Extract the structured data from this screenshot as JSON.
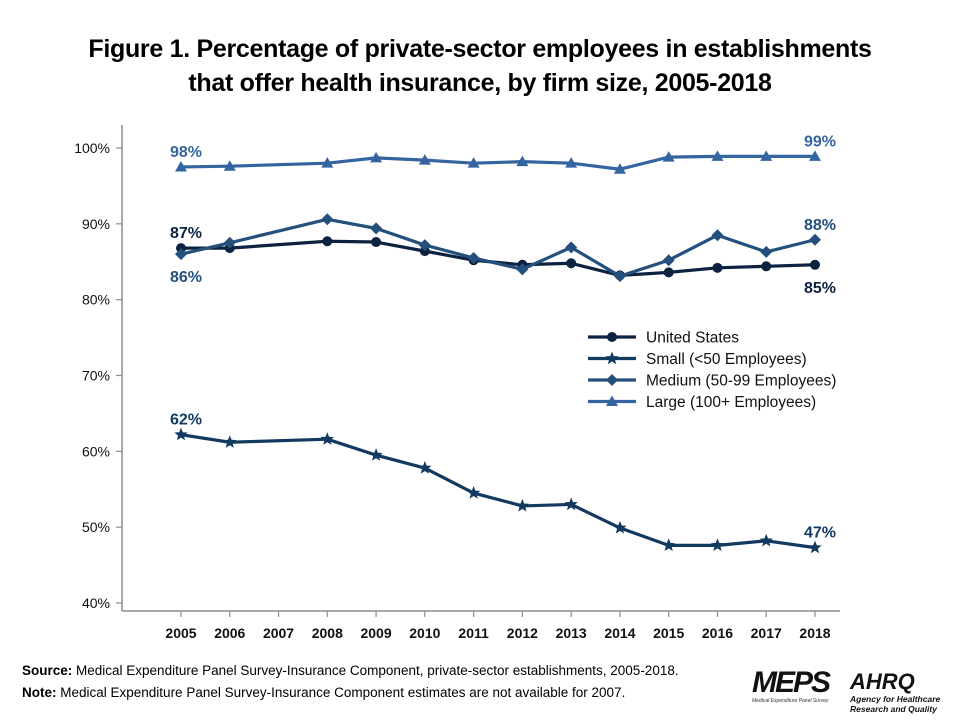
{
  "title_line1": "Figure 1. Percentage of private-sector employees in establishments",
  "title_line2": "that offer health insurance, by firm size, 2005-2018",
  "footer": {
    "source_label": "Source:",
    "source_text": " Medical Expenditure Panel Survey-Insurance Component,  private-sector establishments, 2005-2018.",
    "note_label": "Note:",
    "note_text": " Medical Expenditure Panel Survey-Insurance Component  estimates are not available for 2007."
  },
  "logos": {
    "meps": "MEPS",
    "meps_sub": "Medical Expenditure Panel Survey",
    "ahrq": "AHRQ",
    "ahrq_sub1": "Agency for Healthcare",
    "ahrq_sub2": "Research and Quality"
  },
  "chart_data": {
    "type": "line",
    "title": "Figure 1. Percentage of private-sector employees in establishments that offer health insurance, by firm size, 2005-2018",
    "xlabel": "",
    "ylabel": "",
    "x": [
      2005,
      2006,
      2008,
      2009,
      2010,
      2011,
      2012,
      2013,
      2014,
      2015,
      2016,
      2017,
      2018
    ],
    "x_ticks": [
      "2005",
      "2006",
      "2007",
      "2008",
      "2009",
      "2010",
      "2011",
      "2012",
      "2013",
      "2014",
      "2015",
      "2016",
      "2017",
      "2018"
    ],
    "xlim": [
      2004,
      2019
    ],
    "ylim": [
      40,
      100
    ],
    "y_ticks": [
      "40%",
      "50%",
      "60%",
      "70%",
      "80%",
      "90%",
      "100%"
    ],
    "y_tick_values": [
      40,
      50,
      60,
      70,
      80,
      90,
      100
    ],
    "grid": false,
    "legend_position": "center-right",
    "series": [
      {
        "name": "United States",
        "marker": "circle",
        "color": "#0d2240",
        "values": [
          86.8,
          86.8,
          87.7,
          87.6,
          86.4,
          85.2,
          84.6,
          84.8,
          83.2,
          83.6,
          84.2,
          84.4,
          84.6
        ],
        "labels": [
          {
            "year": 2005,
            "text": "87%",
            "pos": "above"
          },
          {
            "year": 2018,
            "text": "85%",
            "pos": "below"
          }
        ]
      },
      {
        "name": "Small (<50 Employees)",
        "marker": "star",
        "color": "#12395f",
        "values": [
          62.2,
          61.2,
          61.6,
          59.5,
          57.8,
          54.5,
          52.8,
          53.0,
          49.9,
          47.6,
          47.6,
          48.2,
          47.3
        ],
        "labels": [
          {
            "year": 2005,
            "text": "62%",
            "pos": "above"
          },
          {
            "year": 2018,
            "text": "47%",
            "pos": "above"
          }
        ]
      },
      {
        "name": "Medium (50-99 Employees)",
        "marker": "diamond",
        "color": "#24507d",
        "values": [
          86.0,
          87.5,
          90.6,
          89.4,
          87.2,
          85.5,
          84.0,
          86.9,
          83.1,
          85.2,
          88.5,
          86.3,
          87.9
        ],
        "labels": [
          {
            "year": 2005,
            "text": "86%",
            "pos": "below"
          },
          {
            "year": 2018,
            "text": "88%",
            "pos": "above"
          }
        ]
      },
      {
        "name": "Large (100+ Employees)",
        "marker": "triangle",
        "color": "#3465a0",
        "values": [
          97.5,
          97.6,
          98.0,
          98.7,
          98.4,
          98.0,
          98.2,
          98.0,
          97.2,
          98.8,
          98.9,
          98.9,
          98.9
        ],
        "labels": [
          {
            "year": 2005,
            "text": "98%",
            "pos": "above"
          },
          {
            "year": 2018,
            "text": "99%",
            "pos": "above"
          }
        ]
      }
    ]
  }
}
